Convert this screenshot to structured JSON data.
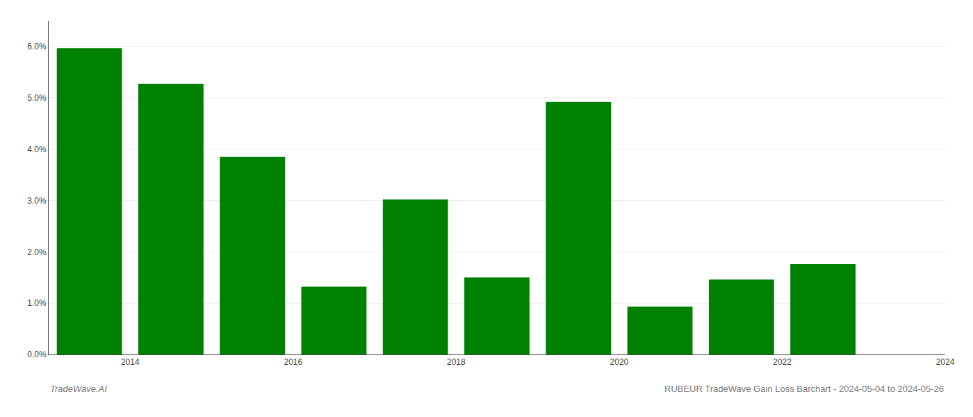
{
  "chart_data": {
    "type": "bar",
    "title": "RUBEUR TradeWave Gain Loss Barchart - 2024-05-04 to 2024-05-26",
    "annotations": [
      "TradeWave.AI"
    ],
    "x": [
      2013.5,
      2014.5,
      2015.5,
      2016.5,
      2017.5,
      2018.5,
      2019.5,
      2020.5,
      2021.5,
      2022.5
    ],
    "values": [
      0.0597,
      0.0527,
      0.0385,
      0.0132,
      0.0302,
      0.015,
      0.0492,
      0.0093,
      0.0146,
      0.0176
    ],
    "color": "#008000",
    "xlim": [
      2013.0,
      2024.0
    ],
    "xticks": [
      2014,
      2016,
      2018,
      2020,
      2022,
      2024
    ],
    "ylim": [
      0,
      0.065
    ],
    "yticks": [
      {
        "value": 0.0,
        "label": "0.0%"
      },
      {
        "value": 0.01,
        "label": "1.0%"
      },
      {
        "value": 0.02,
        "label": "2.0%"
      },
      {
        "value": 0.03,
        "label": "3.0%"
      },
      {
        "value": 0.04,
        "label": "4.0%"
      },
      {
        "value": 0.05,
        "label": "5.0%"
      },
      {
        "value": 0.06,
        "label": "6.0%"
      }
    ],
    "grid": true
  }
}
